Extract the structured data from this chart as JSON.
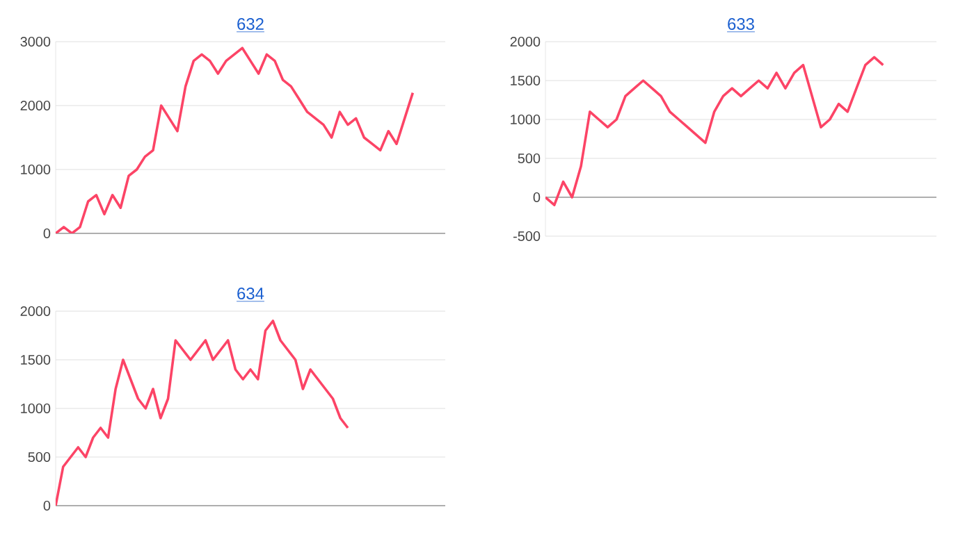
{
  "chart_data": [
    {
      "type": "line",
      "title": "632",
      "categories": [
        null,
        null,
        null,
        null,
        null,
        null,
        null,
        null,
        null,
        null,
        null,
        null,
        null,
        null,
        null,
        null,
        null,
        null,
        null,
        null,
        null,
        null,
        null,
        null,
        null,
        null,
        null,
        null,
        null,
        null,
        null,
        null,
        null,
        null,
        null,
        null,
        null,
        null,
        null,
        null,
        null,
        null,
        null,
        null,
        null,
        null,
        null,
        null,
        null
      ],
      "series": [
        {
          "color": "#fc4466",
          "values": [
            0,
            100,
            0,
            100,
            500,
            600,
            300,
            600,
            400,
            900,
            1000,
            1200,
            1300,
            2000,
            1800,
            1600,
            2300,
            2700,
            2800,
            2700,
            2500,
            2700,
            2800,
            2900,
            2700,
            2500,
            2800,
            2700,
            2400,
            2300,
            2100,
            1900,
            1800,
            1700,
            1500,
            1900,
            1700,
            1800,
            1500,
            1400,
            1300,
            1600,
            1400,
            1800,
            2200,
            null,
            null,
            null,
            null
          ]
        }
      ],
      "ylim": [
        0,
        3000
      ],
      "yticks": [
        0,
        1000,
        2000,
        3000
      ],
      "grid": "y"
    },
    {
      "type": "line",
      "title": "633",
      "categories": [
        null,
        null,
        null,
        null,
        null,
        null,
        null,
        null,
        null,
        null,
        null,
        null,
        null,
        null,
        null,
        null,
        null,
        null,
        null,
        null,
        null,
        null,
        null,
        null,
        null,
        null,
        null,
        null,
        null,
        null,
        null,
        null,
        null,
        null,
        null,
        null,
        null,
        null,
        null,
        null,
        null,
        null,
        null,
        null,
        null
      ],
      "series": [
        {
          "color": "#fc4466",
          "values": [
            0,
            -100,
            200,
            0,
            400,
            1100,
            1000,
            900,
            1000,
            1300,
            1400,
            1500,
            1400,
            1300,
            1100,
            1000,
            900,
            800,
            700,
            1100,
            1300,
            1400,
            1300,
            1400,
            1500,
            1400,
            1600,
            1400,
            1600,
            1700,
            1300,
            900,
            1000,
            1200,
            1100,
            1400,
            1700,
            1800,
            1700,
            null,
            null,
            null,
            null,
            null,
            null
          ]
        }
      ],
      "ylim": [
        -500,
        2000
      ],
      "yticks": [
        -500,
        0,
        500,
        1000,
        1500,
        2000
      ],
      "grid": "y"
    },
    {
      "type": "line",
      "title": "634",
      "categories": [
        null,
        null,
        null,
        null,
        null,
        null,
        null,
        null,
        null,
        null,
        null,
        null,
        null,
        null,
        null,
        null,
        null,
        null,
        null,
        null,
        null,
        null,
        null,
        null,
        null,
        null,
        null,
        null,
        null,
        null,
        null,
        null,
        null,
        null,
        null,
        null,
        null,
        null,
        null,
        null,
        null,
        null,
        null,
        null,
        null,
        null,
        null,
        null,
        null,
        null,
        null,
        null,
        null
      ],
      "series": [
        {
          "color": "#fc4466",
          "values": [
            0,
            400,
            500,
            600,
            500,
            700,
            800,
            700,
            1200,
            1500,
            1300,
            1100,
            1000,
            1200,
            900,
            1100,
            1700,
            1600,
            1500,
            1600,
            1700,
            1500,
            1600,
            1700,
            1400,
            1300,
            1400,
            1300,
            1800,
            1900,
            1700,
            1600,
            1500,
            1200,
            1400,
            1300,
            1200,
            1100,
            900,
            800,
            null,
            null,
            null,
            null,
            null,
            null,
            null,
            null,
            null,
            null,
            null,
            null,
            null
          ]
        }
      ],
      "ylim": [
        0,
        2000
      ],
      "yticks": [
        0,
        500,
        1000,
        1500,
        2000
      ],
      "grid": "y"
    }
  ]
}
